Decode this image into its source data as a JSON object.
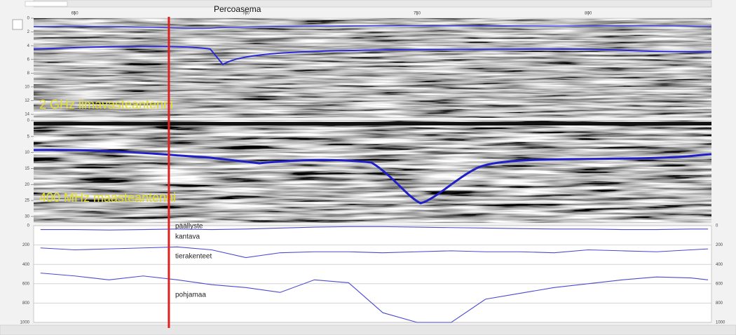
{
  "annotation": {
    "label": "Percoasema",
    "x": 677.5
  },
  "distance_axis": {
    "xlim": [
      638,
      836
    ],
    "ticks": [
      650,
      700,
      750,
      800
    ]
  },
  "panels": [
    {
      "label": "2 GHz ilmavasteantenni",
      "ylim": [
        0,
        14.5
      ],
      "yticks": [
        0,
        2,
        4,
        6,
        8,
        10,
        12,
        14
      ]
    },
    {
      "label": "400 MHz maasteantenni",
      "ylim": [
        0,
        32
      ],
      "yticks": [
        0,
        5,
        10,
        15,
        20,
        25,
        30
      ]
    }
  ],
  "layer_profile": {
    "ylim": [
      0,
      1000
    ],
    "yticks": [
      0,
      200,
      400,
      600,
      800,
      1000
    ],
    "x": [
      640,
      650,
      660,
      670,
      680,
      690,
      700,
      710,
      720,
      730,
      740,
      750,
      760,
      770,
      780,
      790,
      800,
      810,
      820,
      830,
      835
    ],
    "lines": [
      {
        "color": "#4a4ad0",
        "values": [
          40,
          40,
          45,
          40,
          35,
          40,
          35,
          25,
          15,
          10,
          10,
          15,
          20,
          25,
          30,
          35,
          35,
          40,
          40,
          35,
          35
        ]
      },
      {
        "color": "#4a4ad0",
        "values": [
          230,
          250,
          240,
          230,
          220,
          250,
          330,
          280,
          270,
          270,
          280,
          270,
          260,
          270,
          270,
          280,
          250,
          260,
          270,
          250,
          240
        ]
      },
      {
        "color": "#4a4ad0",
        "values": [
          490,
          520,
          560,
          520,
          560,
          610,
          640,
          690,
          560,
          590,
          900,
          1000,
          1000,
          760,
          700,
          640,
          600,
          560,
          530,
          540,
          560
        ]
      }
    ],
    "layers": [
      "päällyste",
      "kantava",
      "tierakenteet",
      "pohjamaa"
    ]
  }
}
